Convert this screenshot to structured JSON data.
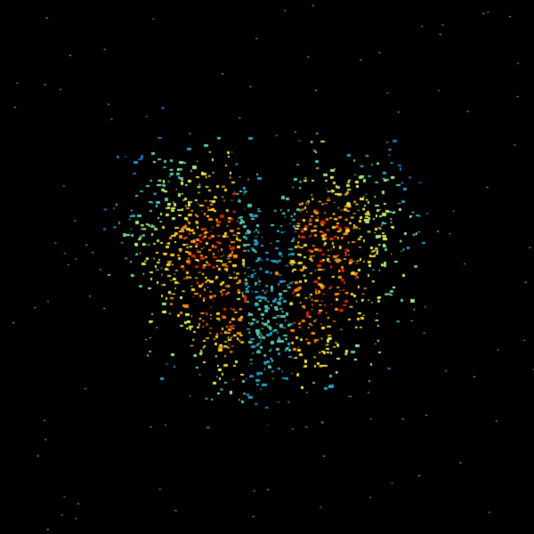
{
  "image": {
    "background": "#000000",
    "colormap": [
      "#1a3f8f",
      "#1f6fb0",
      "#2a9bbf",
      "#5cc3a8",
      "#9ee08a",
      "#d6ee5a",
      "#f0d030",
      "#f08a10",
      "#d02a00"
    ],
    "center_marker_color": "#000000"
  }
}
